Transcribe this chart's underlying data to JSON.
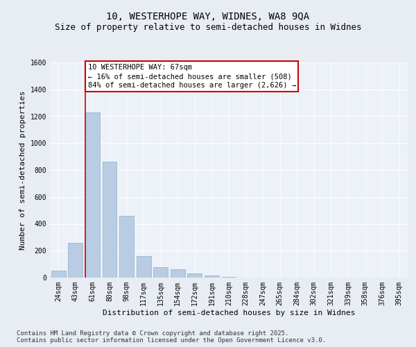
{
  "title_line1": "10, WESTERHOPE WAY, WIDNES, WA8 9QA",
  "title_line2": "Size of property relative to semi-detached houses in Widnes",
  "categories": [
    "24sqm",
    "43sqm",
    "61sqm",
    "80sqm",
    "98sqm",
    "117sqm",
    "135sqm",
    "154sqm",
    "172sqm",
    "191sqm",
    "210sqm",
    "228sqm",
    "247sqm",
    "265sqm",
    "284sqm",
    "302sqm",
    "321sqm",
    "339sqm",
    "358sqm",
    "376sqm",
    "395sqm"
  ],
  "values": [
    50,
    260,
    1230,
    860,
    460,
    160,
    80,
    60,
    30,
    15,
    5,
    2,
    1,
    0,
    0,
    0,
    0,
    0,
    0,
    0,
    0
  ],
  "bar_color": "#b8cce4",
  "bar_edge_color": "#8aafc8",
  "highlight_line_color": "#cc0000",
  "annotation_title": "10 WESTERHOPE WAY: 67sqm",
  "annotation_line1": "← 16% of semi-detached houses are smaller (508)",
  "annotation_line2": "84% of semi-detached houses are larger (2,626) →",
  "annotation_box_color": "#cc0000",
  "xlabel": "Distribution of semi-detached houses by size in Widnes",
  "ylabel": "Number of semi-detached properties",
  "ylim": [
    0,
    1600
  ],
  "yticks": [
    0,
    200,
    400,
    600,
    800,
    1000,
    1200,
    1400,
    1600
  ],
  "footnote_line1": "Contains HM Land Registry data © Crown copyright and database right 2025.",
  "footnote_line2": "Contains public sector information licensed under the Open Government Licence v3.0.",
  "bg_color": "#e8edf4",
  "plot_bg_color": "#edf1f8",
  "title_fontsize": 10,
  "subtitle_fontsize": 9,
  "axis_label_fontsize": 8,
  "tick_fontsize": 7,
  "footnote_fontsize": 6.5,
  "annotation_fontsize": 7.5
}
